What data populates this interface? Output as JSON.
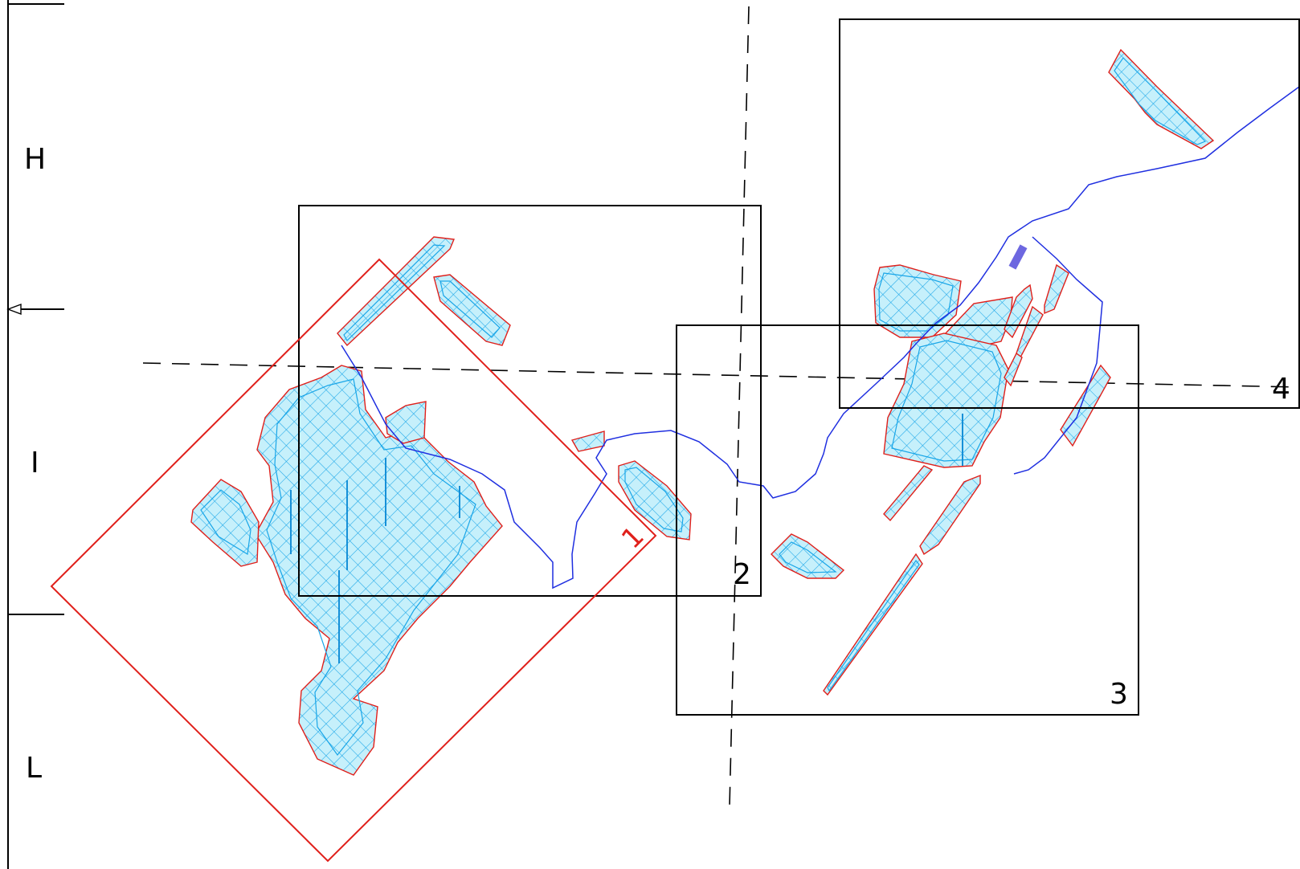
{
  "zones": {
    "upper": "H",
    "middle": "I",
    "lower": "L"
  },
  "frames": {
    "f1": "1",
    "f2": "2",
    "f3": "3",
    "f4": "4"
  },
  "colors": {
    "frame_highlight": "#e0201b",
    "frame": "#000000",
    "river": "#1f2fe0",
    "hatch": "#19a6e8",
    "boundary": "#e0201b"
  },
  "icons": {
    "arrow": "arrow-left-icon"
  }
}
